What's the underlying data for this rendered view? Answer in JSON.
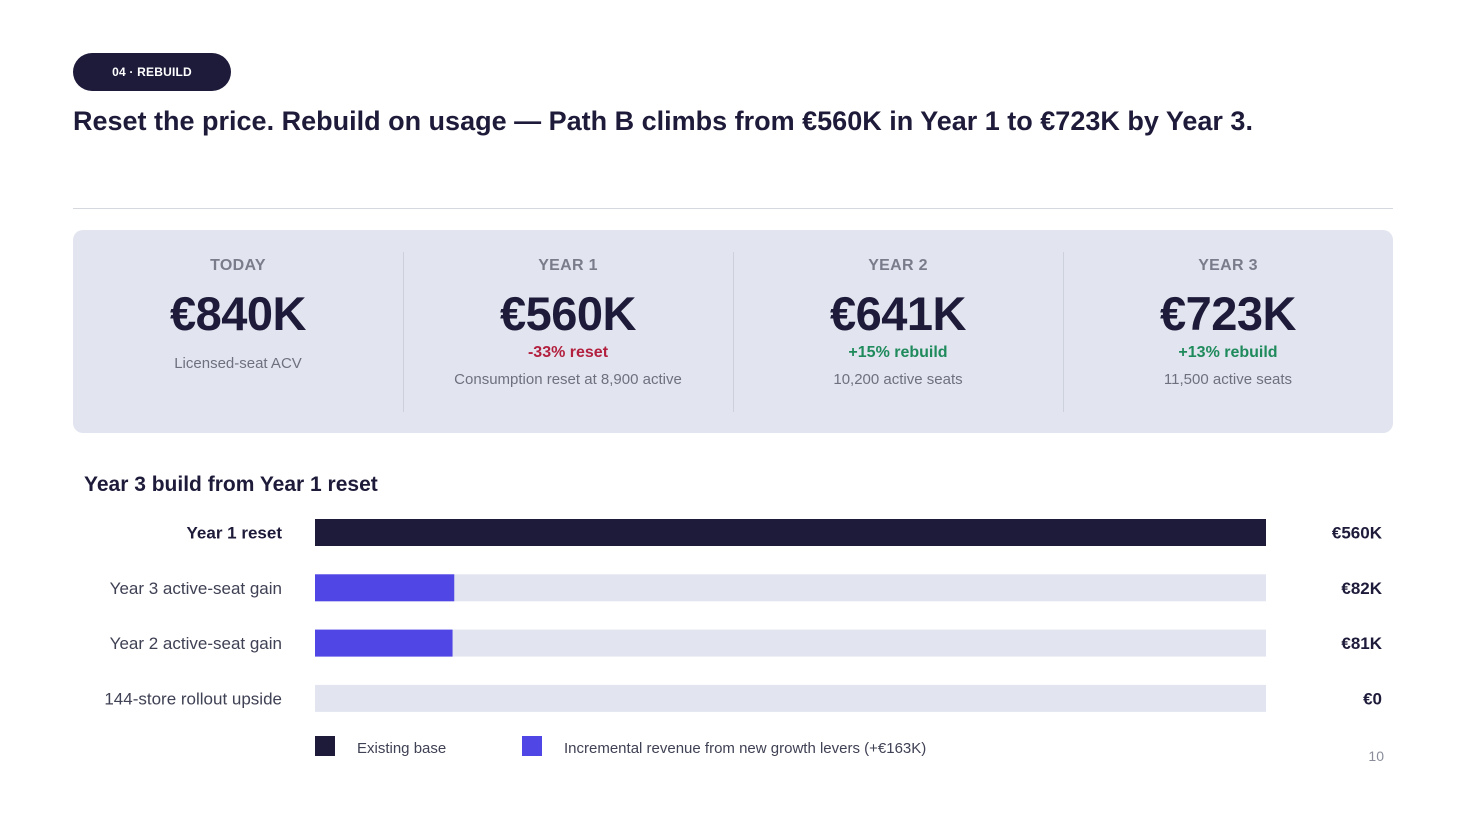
{
  "section_tag": "04 · REBUILD",
  "headline": "Reset the price. Rebuild on usage — Path B climbs from €560K in Year 1 to €723K by Year 3.",
  "kpis": [
    {
      "label": "TODAY",
      "value": "€840K",
      "change": "",
      "note": "Licensed-seat ACV"
    },
    {
      "label": "YEAR 1",
      "value": "€560K",
      "change": "-33% reset",
      "note": "Consumption reset at 8,900 active"
    },
    {
      "label": "YEAR 2",
      "value": "€641K",
      "change": "+15% rebuild",
      "note": "10,200 active seats"
    },
    {
      "label": "YEAR 3",
      "value": "€723K",
      "change": "+13% rebuild",
      "note": "11,500 active seats"
    }
  ],
  "colors": {
    "existing": "#1e1b3a",
    "incremental": "#5046e5",
    "track": "#e2e5ef",
    "negative": "#b3203f",
    "positive": "#1f8a5c"
  },
  "chart_data": {
    "type": "bar",
    "orientation": "horizontal",
    "title": "Year 3 build from Year 1 reset",
    "categories": [
      "Year 1 reset",
      "Year 3 active-seat gain",
      "Year 2 active-seat gain",
      "144-store rollout upside"
    ],
    "values": [
      560,
      82,
      81,
      0
    ],
    "value_labels": [
      "€560K",
      "€82K",
      "€81K",
      "€0"
    ],
    "bar_kind": [
      "existing",
      "incremental",
      "incremental",
      "incremental"
    ],
    "xlim": [
      0,
      560
    ],
    "grid": false,
    "legend": [
      {
        "label": "Existing base",
        "kind": "existing"
      },
      {
        "label": "Incremental revenue from new growth levers (+€163K)",
        "kind": "incremental"
      }
    ],
    "legend_position": "bottom-left"
  },
  "page_number": "10"
}
